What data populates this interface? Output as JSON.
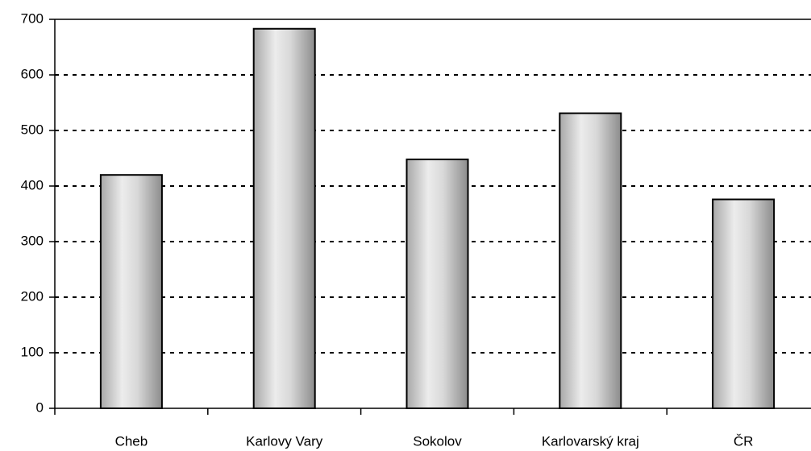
{
  "chart_data": {
    "type": "bar",
    "categories": [
      "Cheb",
      "Karlovy Vary",
      "Sokolov",
      "Karlovarský kraj",
      "ČR"
    ],
    "values": [
      420,
      683,
      448,
      531,
      376
    ],
    "ylim": [
      0,
      700
    ],
    "yticks": [
      0,
      100,
      200,
      300,
      400,
      500,
      600,
      700
    ],
    "grid": true
  }
}
